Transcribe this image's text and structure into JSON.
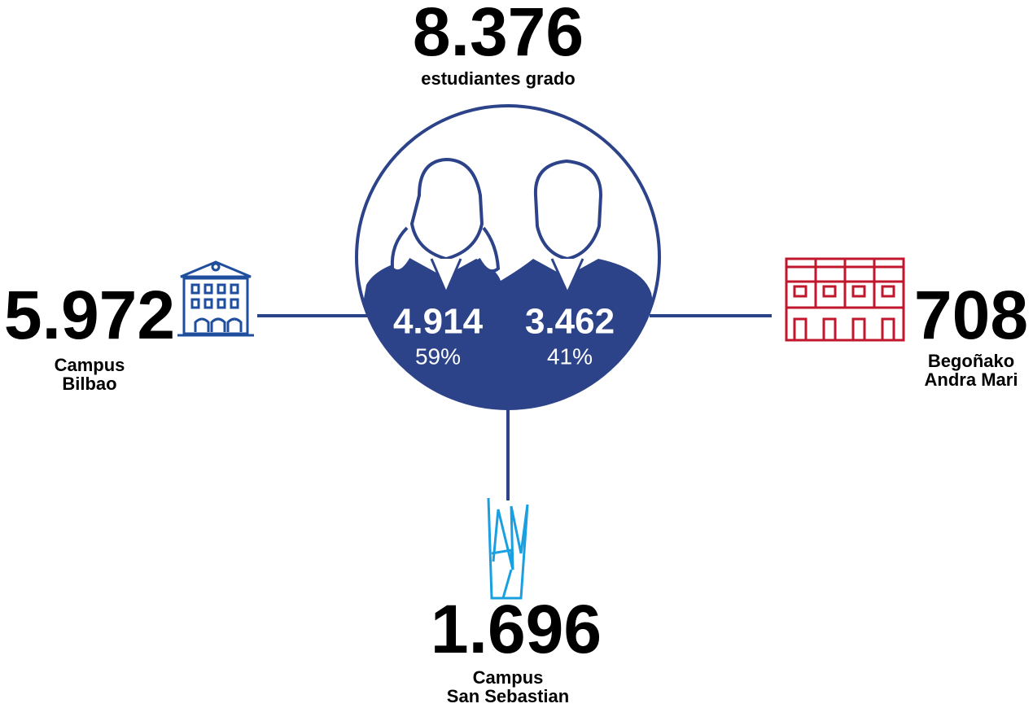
{
  "total": {
    "value": "8.376",
    "label": "estudiantes grado"
  },
  "women": {
    "value": "4.914",
    "percent": "59%"
  },
  "men": {
    "value": "3.462",
    "percent": "41%"
  },
  "campuses": [
    {
      "value": "5.972",
      "label_lines": [
        "Campus",
        "Bilbao"
      ]
    },
    {
      "value": "708",
      "label_lines": [
        "Begoñako",
        "Andra Mari"
      ]
    },
    {
      "value": "1.696",
      "label_lines": [
        "Campus",
        "San Sebastian"
      ]
    }
  ]
}
